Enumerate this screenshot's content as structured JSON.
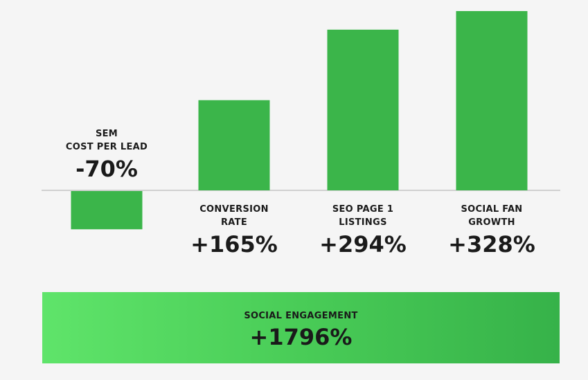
{
  "chart_data": {
    "type": "bar",
    "categories": [
      "SEM\nCOST PER LEAD",
      "CONVERSION\nRATE",
      "SEO PAGE 1\nLISTINGS",
      "SOCIAL FAN\nGROWTH"
    ],
    "values": [
      -70,
      165,
      294,
      328
    ],
    "value_labels": [
      "-70%",
      "+165%",
      "+294%",
      "+328%"
    ],
    "bar_color": "#3bb54a",
    "baseline_color": "#d0d0d0",
    "grid": false
  },
  "callout": {
    "label": "SOCIAL ENGAGEMENT",
    "value": "+1796%"
  }
}
